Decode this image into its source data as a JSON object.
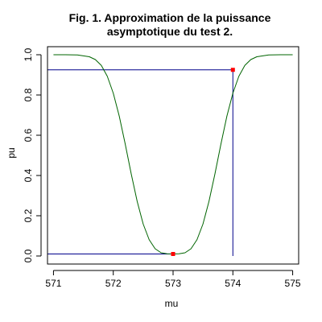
{
  "chart_data": {
    "type": "line",
    "title_lines": [
      "Fig. 1. Approximation de la puissance",
      "asymptotique du test 2."
    ],
    "xlabel": "mu",
    "ylabel": "pu",
    "xlim": [
      570.9,
      575.1
    ],
    "ylim": [
      -0.04,
      1.04
    ],
    "x_ticks": [
      571,
      572,
      573,
      574,
      575
    ],
    "x_tick_labels": [
      "571",
      "572",
      "573",
      "574",
      "575"
    ],
    "y_ticks": [
      0.0,
      0.2,
      0.4,
      0.6,
      0.8,
      1.0
    ],
    "y_tick_labels": [
      "0.0",
      "0.2",
      "0.4",
      "0.6",
      "0.8",
      "1.0"
    ],
    "grid": false,
    "series": [
      {
        "color": "#006400",
        "x": [
          571.0,
          571.2,
          571.4,
          571.6,
          571.7,
          571.8,
          571.9,
          572.0,
          572.1,
          572.2,
          572.3,
          572.4,
          572.5,
          572.6,
          572.7,
          572.8,
          572.9,
          573.0,
          573.1,
          573.2,
          573.3,
          573.4,
          573.5,
          573.6,
          573.7,
          573.8,
          573.9,
          574.0,
          574.1,
          574.2,
          574.3,
          574.4,
          574.6,
          574.8,
          575.0
        ],
        "y": [
          1.0,
          1.0,
          0.999,
          0.99,
          0.976,
          0.947,
          0.893,
          0.809,
          0.695,
          0.556,
          0.408,
          0.271,
          0.159,
          0.081,
          0.036,
          0.016,
          0.011,
          0.01,
          0.011,
          0.016,
          0.036,
          0.081,
          0.159,
          0.271,
          0.408,
          0.556,
          0.695,
          0.809,
          0.893,
          0.947,
          0.976,
          0.99,
          0.999,
          1.0,
          1.0
        ]
      }
    ],
    "reference_lines": [
      {
        "color": "#00008B",
        "points": [
          [
            570.9,
            0.01
          ],
          [
            573.0,
            0.01
          ]
        ]
      },
      {
        "color": "#00008B",
        "points": [
          [
            570.9,
            0.925
          ],
          [
            574.0,
            0.925
          ],
          [
            574.0,
            0.0
          ]
        ]
      }
    ],
    "highlighted_points": [
      {
        "x": 573.0,
        "y": 0.01,
        "color": "#FF0000"
      },
      {
        "x": 574.0,
        "y": 0.925,
        "color": "#FF0000"
      }
    ]
  }
}
